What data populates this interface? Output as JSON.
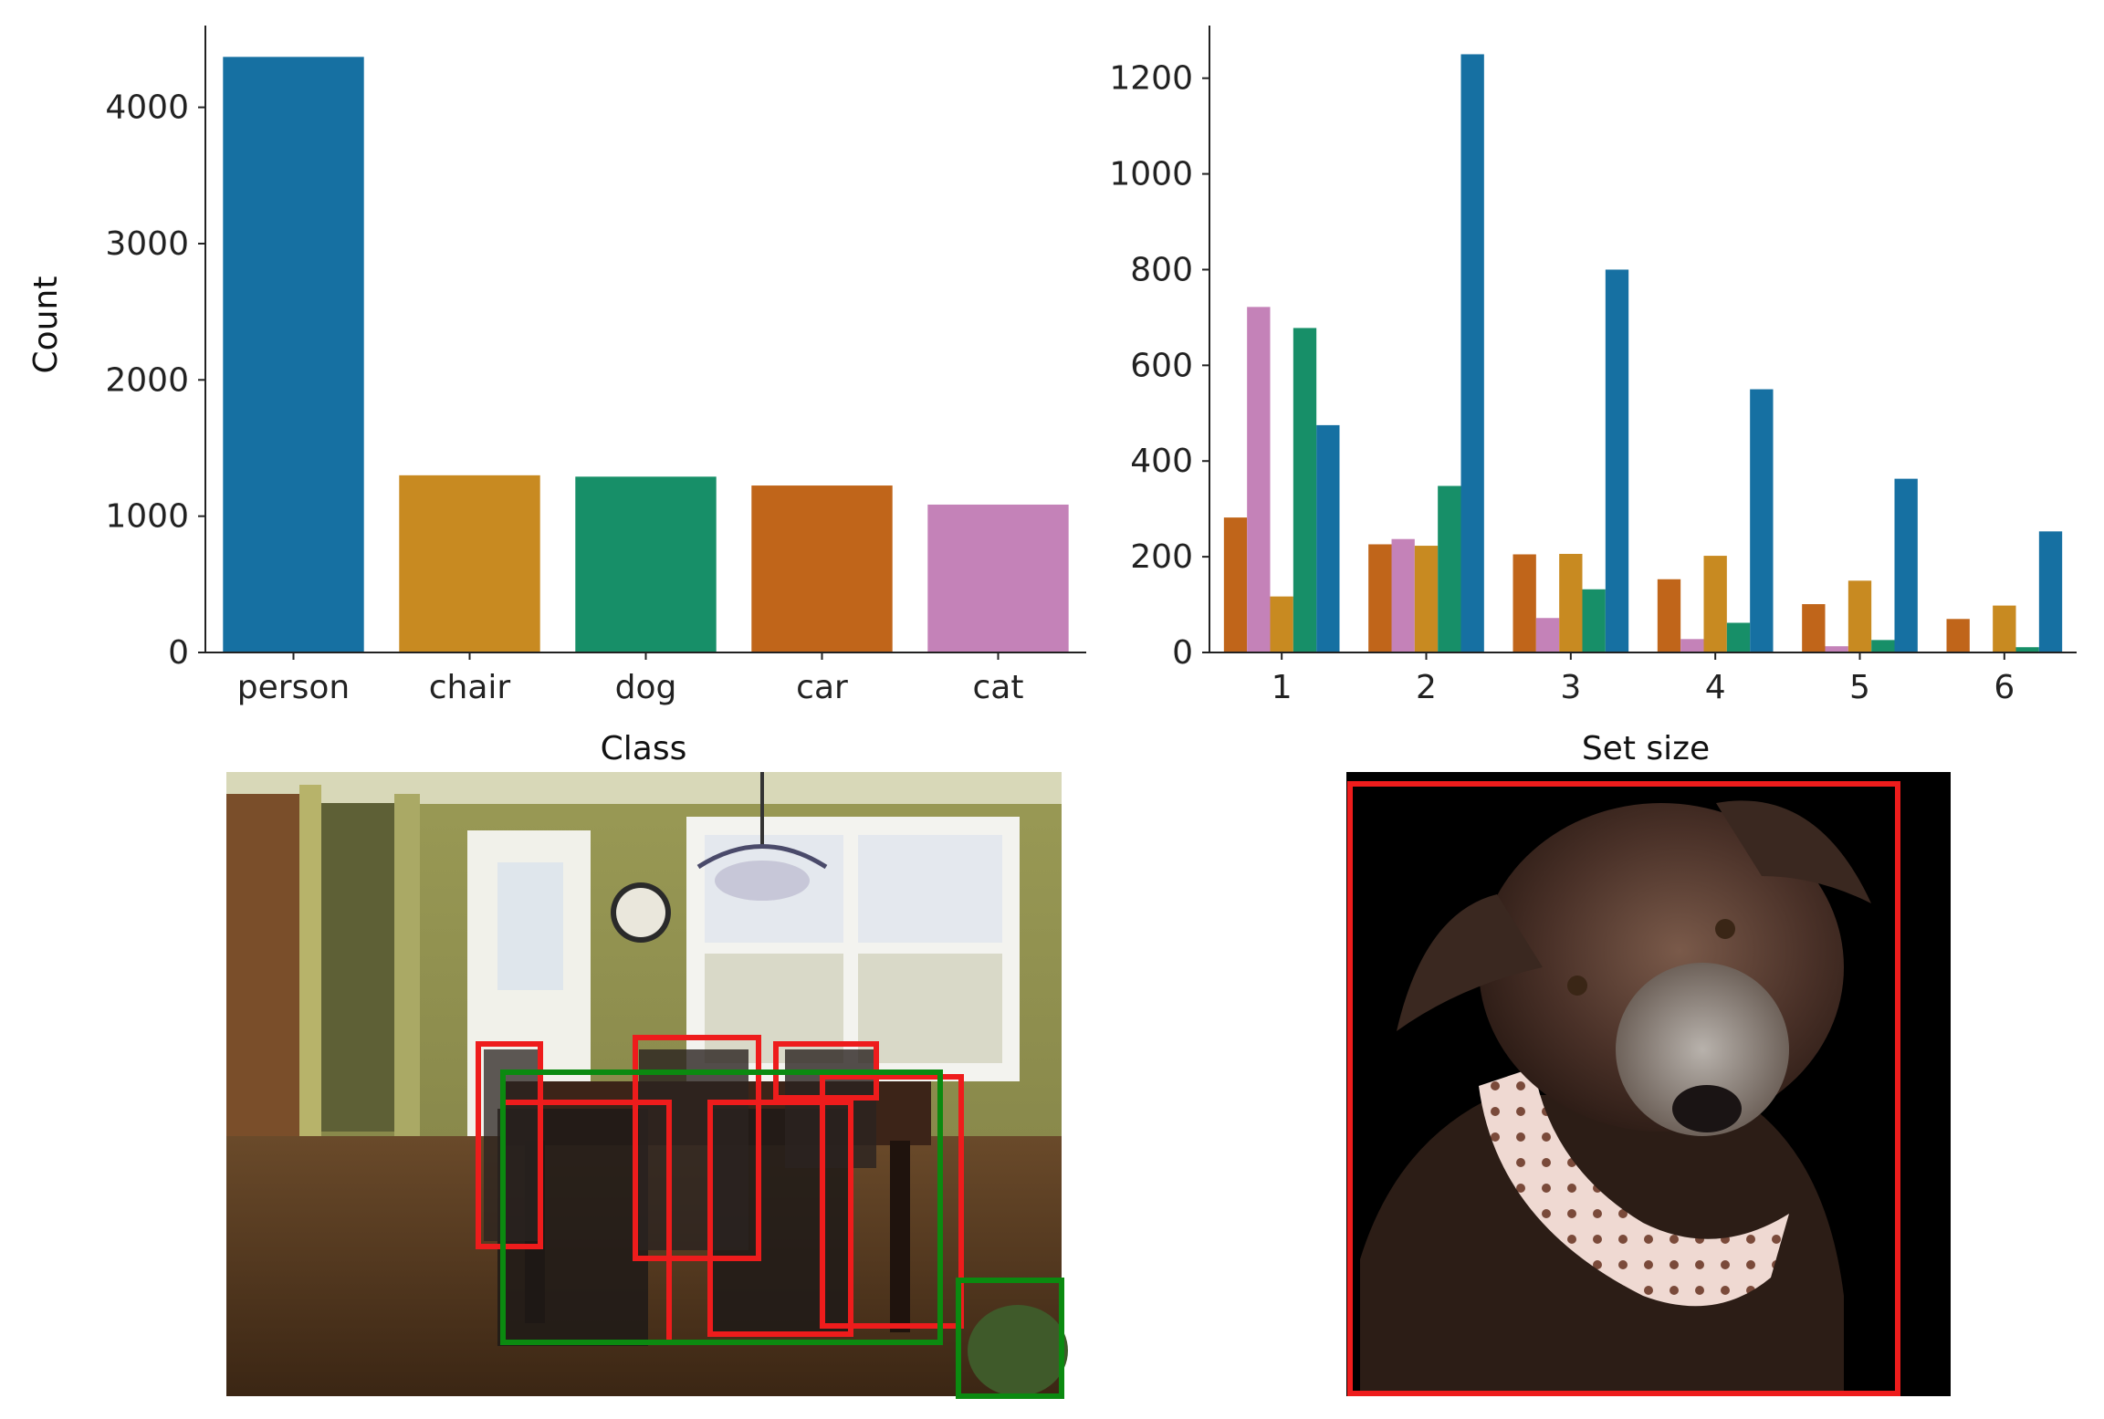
{
  "chart_data": [
    {
      "type": "bar",
      "categories": [
        "person",
        "chair",
        "dog",
        "car",
        "cat"
      ],
      "values": [
        4370,
        1300,
        1290,
        1225,
        1085
      ],
      "colors": [
        "#1670a2",
        "#c88a21",
        "#178f68",
        "#c0651a",
        "#c482b8"
      ],
      "title": "",
      "xlabel": "Class",
      "ylabel": "Count",
      "ylim": [
        0,
        4600
      ],
      "yticks": [
        0,
        1000,
        2000,
        3000,
        4000
      ],
      "grid": false,
      "legend": "none"
    },
    {
      "type": "bar",
      "categories": [
        "1",
        "2",
        "3",
        "4",
        "5",
        "6"
      ],
      "series": [
        {
          "values": [
            282,
            226,
            205,
            153,
            101,
            70
          ],
          "color": "#c0651a"
        },
        {
          "values": [
            722,
            237,
            72,
            28,
            13,
            0
          ],
          "color": "#c482b8"
        },
        {
          "values": [
            117,
            223,
            206,
            202,
            150,
            98
          ],
          "color": "#c88a21"
        },
        {
          "values": [
            678,
            348,
            132,
            62,
            26,
            11
          ],
          "color": "#178f68"
        },
        {
          "values": [
            475,
            1250,
            800,
            550,
            363,
            253
          ],
          "color": "#1670a2"
        }
      ],
      "title": "",
      "xlabel": "Set size",
      "ylabel": "",
      "ylim": [
        0,
        1310
      ],
      "yticks": [
        0,
        200,
        400,
        600,
        800,
        1000,
        1200
      ],
      "grid": false,
      "legend": "none"
    }
  ],
  "photos": [
    {
      "subject": "dining room with chairs and table",
      "box_colors": [
        "#ee1c1c",
        "#0b8a10"
      ]
    },
    {
      "subject": "dog portrait on black background",
      "box_colors": [
        "#ee1c1c"
      ]
    }
  ]
}
